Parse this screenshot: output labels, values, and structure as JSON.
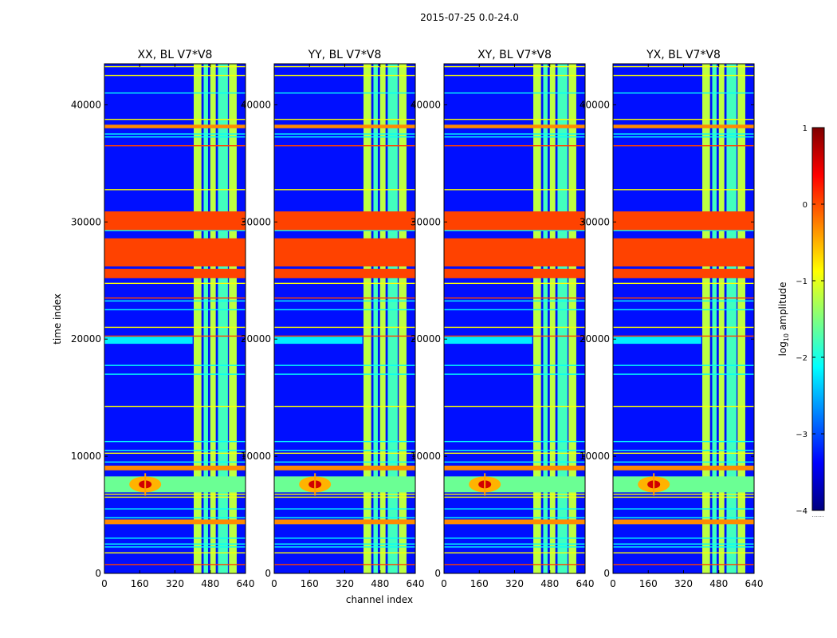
{
  "chart_data": {
    "type": "heatmap",
    "title": "2015-07-25 0.0-24.0",
    "xlabel": "channel index",
    "ylabel": "time index",
    "x_ticks": [
      "0",
      "160",
      "320",
      "480",
      "640"
    ],
    "x_tick_values": [
      0,
      160,
      320,
      480,
      640
    ],
    "y_ticks": [
      "0",
      "10000",
      "20000",
      "30000",
      "40000"
    ],
    "y_tick_values": [
      0,
      10000,
      20000,
      30000,
      40000
    ],
    "xlim": [
      0,
      640
    ],
    "ylim": [
      0,
      43500
    ],
    "colormap": "jet",
    "panels": [
      {
        "title": "XX, BL V7*V8",
        "polarization": "XX"
      },
      {
        "title": "YY, BL V7*V8",
        "polarization": "YY"
      },
      {
        "title": "XY, BL V7*V8",
        "polarization": "XY"
      },
      {
        "title": "YX, BL V7*V8",
        "polarization": "YX"
      }
    ],
    "colorbar": {
      "label_prefix": "log",
      "label_sub": "10",
      "label_suffix": " amplitude",
      "range": [
        -4,
        1
      ],
      "ticks": [
        "1",
        "0",
        "−1",
        "−2",
        "−3",
        "−4"
      ],
      "tick_values": [
        1,
        0,
        -1,
        -2,
        -3,
        -4
      ],
      "extra_label": "......"
    },
    "features": {
      "background_level": -3.3,
      "bright_channel_bands": [
        [
          405,
          440
        ],
        [
          450,
          470
        ],
        [
          480,
          505
        ],
        [
          515,
          560
        ],
        [
          565,
          600
        ]
      ],
      "saturated_time_bands": [
        [
          26200,
          28600
        ],
        [
          29300,
          30900
        ],
        [
          25200,
          26000
        ]
      ],
      "hot_time_bands": [
        [
          38000,
          38300
        ],
        [
          8800,
          9200
        ],
        [
          4200,
          4600
        ]
      ],
      "flare_time": 7600,
      "flare_channel": 185
    }
  }
}
